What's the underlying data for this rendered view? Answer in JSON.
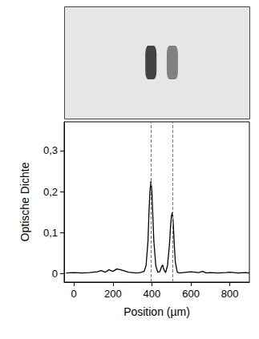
{
  "chart_data": [
    {
      "type": "image",
      "xlim": [
        -50,
        900
      ],
      "tick_labels": false,
      "spots": {
        "x": [
          395,
          505
        ],
        "values": [
          0.225,
          0.15
        ]
      }
    },
    {
      "type": "line",
      "color": "#000000",
      "xlabel": "Position (µm)",
      "ylabel": "Optische Dichte",
      "x": [
        -40,
        0,
        40,
        80,
        120,
        140,
        160,
        180,
        200,
        220,
        240,
        260,
        280,
        300,
        320,
        340,
        360,
        370,
        380,
        385,
        390,
        395,
        400,
        405,
        410,
        420,
        430,
        440,
        450,
        455,
        460,
        470,
        480,
        490,
        495,
        500,
        505,
        510,
        515,
        520,
        530,
        540,
        560,
        600,
        640,
        660,
        680,
        700,
        740,
        780,
        800,
        840,
        880,
        900
      ],
      "values": [
        0.002,
        0.003,
        0.002,
        0.003,
        0.005,
        0.008,
        0.004,
        0.01,
        0.006,
        0.012,
        0.01,
        0.007,
        0.004,
        0.003,
        0.002,
        0.003,
        0.006,
        0.02,
        0.08,
        0.15,
        0.2,
        0.225,
        0.2,
        0.14,
        0.08,
        0.02,
        0.004,
        0.005,
        0.018,
        0.022,
        0.012,
        0.003,
        0.02,
        0.07,
        0.11,
        0.14,
        0.15,
        0.12,
        0.07,
        0.03,
        0.004,
        0.002,
        0.003,
        0.005,
        0.003,
        0.006,
        0.002,
        0.003,
        0.002,
        0.003,
        0.004,
        0.002,
        0.003,
        0.002
      ],
      "markers": [
        395,
        505
      ],
      "line_style": "dashed",
      "xlim": [
        -50,
        900
      ],
      "xticks": [
        0,
        200,
        400,
        600,
        800
      ],
      "ylim": [
        -0.02,
        0.37
      ],
      "yticks": [
        0,
        {
          "value": 0.1,
          "label": "0,1"
        },
        {
          "value": 0.2,
          "label": "0,2"
        },
        {
          "value": 0.3,
          "label": "0,3"
        }
      ]
    }
  ]
}
